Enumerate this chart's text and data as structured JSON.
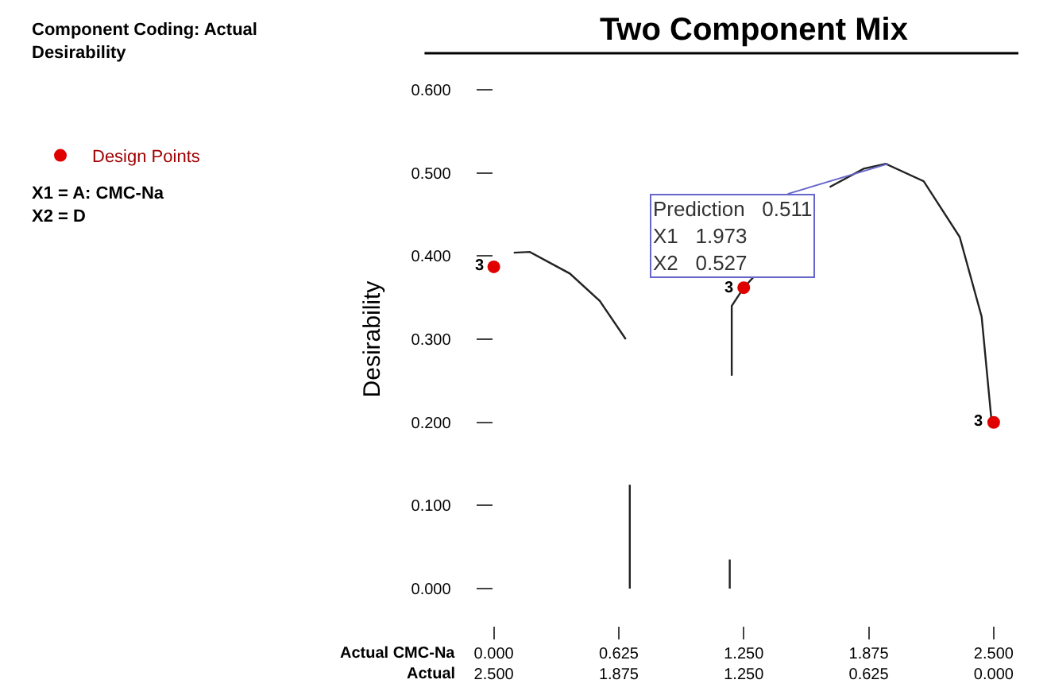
{
  "chart_data": {
    "type": "line",
    "title": "Two Component Mix",
    "ylabel": "Desirability",
    "xlabel": "Actual CMC-Na",
    "x2label": "Actual",
    "annotations": [
      "Component Coding: Actual\nDesirability",
      "X1 = A: CMC-Na\nX2 = D",
      {
        "text": "3",
        "x": 0.0,
        "y": 0.387
      },
      {
        "text": "3",
        "x": 1.25,
        "y": 0.362
      },
      {
        "text": "3",
        "x": 2.5,
        "y": 0.2
      },
      {
        "text": "Prediction\t0.511\nX1\t1.973\nX2\t0.527",
        "x": 1.973,
        "y": 0.511
      }
    ],
    "series": [
      {
        "color": "#222222",
        "x": [
          0.1,
          0.18,
          0.38,
          0.53,
          0.66,
          null,
          0.68,
          0.68,
          null,
          1.18,
          1.18,
          null,
          1.19,
          1.19,
          1.25,
          1.3,
          null,
          1.68,
          1.85,
          1.96,
          2.15,
          2.33,
          2.44,
          2.49
        ],
        "values": [
          0.404,
          0.405,
          0.379,
          0.346,
          0.3,
          null,
          0.0,
          0.125,
          null,
          0.0,
          0.035,
          null,
          0.256,
          0.34,
          0.362,
          0.375,
          null,
          0.483,
          0.505,
          0.511,
          0.49,
          0.423,
          0.327,
          0.2
        ]
      },
      {
        "type": "scatter",
        "name": "Design Points",
        "color": "#e00000",
        "marker": "circle",
        "x": [
          0.0,
          1.25,
          2.5
        ],
        "values": [
          0.387,
          0.362,
          0.2
        ]
      }
    ],
    "xlim": [
      0.0,
      2.5
    ],
    "xticks": [
      {
        "value": 0.0,
        "label": "0.000"
      },
      0.625,
      {
        "value": 1.25,
        "label": "1.250"
      },
      1.875,
      {
        "value": 2.5,
        "label": "2.500"
      }
    ],
    "x2lim": [
      2.5,
      0.0
    ],
    "x2ticks": [
      {
        "value": 2.5,
        "label": "2.500"
      },
      1.875,
      {
        "value": 1.25,
        "label": "1.250"
      },
      0.625,
      {
        "value": 0.0,
        "label": "0.000"
      }
    ],
    "ylim": [
      0.0,
      0.6
    ],
    "yticks": [
      {
        "value": 0.0,
        "label": "0.000"
      },
      {
        "value": 0.1,
        "label": "0.100"
      },
      {
        "value": 0.2,
        "label": "0.200"
      },
      {
        "value": 0.3,
        "label": "0.300"
      },
      {
        "value": 0.4,
        "label": "0.400"
      },
      {
        "value": 0.5,
        "label": "0.500"
      },
      {
        "value": 0.6,
        "label": "0.600"
      }
    ],
    "grid": false,
    "legend": "left",
    "line_style": "solid"
  }
}
